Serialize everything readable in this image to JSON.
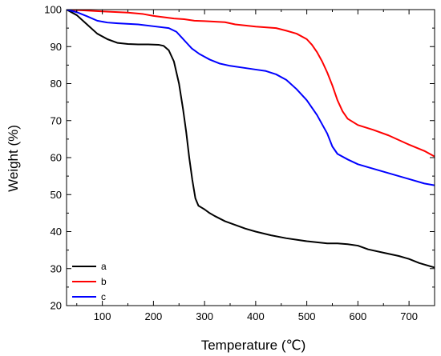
{
  "chart_data": {
    "type": "line",
    "xlabel": "Temperature (℃)",
    "ylabel": "Weight (%)",
    "xlim": [
      30,
      750
    ],
    "ylim": [
      20,
      100
    ],
    "xticks": [
      100,
      200,
      300,
      400,
      500,
      600,
      700
    ],
    "yticks": [
      20,
      30,
      40,
      50,
      60,
      70,
      80,
      90,
      100
    ],
    "grid": false,
    "legend_position": "bottom-left",
    "series": [
      {
        "name": "a",
        "color": "#000000",
        "x": [
          30,
          50,
          70,
          90,
          110,
          130,
          150,
          170,
          190,
          210,
          220,
          230,
          240,
          250,
          258,
          264,
          270,
          276,
          282,
          288,
          294,
          300,
          310,
          320,
          340,
          360,
          380,
          400,
          430,
          460,
          500,
          540,
          560,
          580,
          600,
          620,
          650,
          680,
          700,
          720,
          750
        ],
        "y": [
          100,
          98.5,
          96,
          93.5,
          92,
          91,
          90.7,
          90.6,
          90.6,
          90.5,
          90.2,
          89,
          86,
          80,
          73,
          67,
          60,
          54,
          49,
          47,
          46.5,
          46,
          45,
          44.2,
          42.8,
          41.8,
          40.8,
          40,
          39,
          38.2,
          37.4,
          36.8,
          36.8,
          36.6,
          36.2,
          35.2,
          34.3,
          33.4,
          32.6,
          31.5,
          30.3
        ]
      },
      {
        "name": "b",
        "color": "#ff0000",
        "x": [
          30,
          60,
          100,
          150,
          180,
          200,
          240,
          260,
          280,
          300,
          340,
          360,
          400,
          440,
          460,
          480,
          500,
          510,
          520,
          530,
          540,
          550,
          560,
          570,
          580,
          600,
          630,
          660,
          700,
          730,
          750
        ],
        "y": [
          100,
          99.8,
          99.5,
          99.2,
          98.8,
          98.3,
          97.6,
          97.4,
          97.0,
          96.9,
          96.6,
          96.0,
          95.4,
          95.0,
          94.3,
          93.5,
          92.0,
          90.5,
          88.5,
          86,
          83,
          79.5,
          75.5,
          72.5,
          70.5,
          68.8,
          67.5,
          66,
          63.5,
          61.8,
          60.3
        ]
      },
      {
        "name": "c",
        "color": "#0000ff",
        "x": [
          30,
          50,
          70,
          90,
          110,
          130,
          170,
          200,
          230,
          245,
          255,
          265,
          275,
          290,
          310,
          330,
          350,
          380,
          400,
          420,
          440,
          460,
          480,
          500,
          520,
          540,
          550,
          560,
          580,
          600,
          620,
          660,
          700,
          730,
          750
        ],
        "y": [
          100,
          99.3,
          98.2,
          97,
          96.5,
          96.3,
          96,
          95.5,
          95,
          94,
          92.5,
          91,
          89.5,
          88,
          86.5,
          85.4,
          84.8,
          84.2,
          83.8,
          83.4,
          82.5,
          81,
          78.5,
          75.5,
          71.5,
          66.5,
          63,
          61,
          59.5,
          58.2,
          57.4,
          55.8,
          54.2,
          53,
          52.5
        ]
      }
    ]
  }
}
